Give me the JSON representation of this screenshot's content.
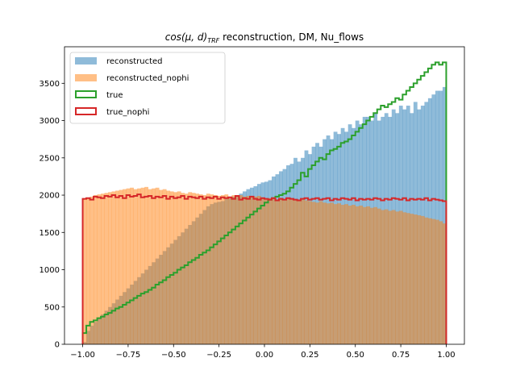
{
  "chart_data": {
    "type": "histogram",
    "title": {
      "math": "cos(μ, d)",
      "subscript": "TRF",
      "text": " reconstruction, DM, Nu_flows"
    },
    "xlabel": "",
    "ylabel": "",
    "xlim": [
      -1.1,
      1.1
    ],
    "ylim": [
      0,
      3990
    ],
    "xticks": [
      -1.0,
      -0.75,
      -0.5,
      -0.25,
      0.0,
      0.25,
      0.5,
      0.75,
      1.0
    ],
    "xtick_labels": [
      "−1.00",
      "−0.75",
      "−0.50",
      "−0.25",
      "0.00",
      "0.25",
      "0.50",
      "0.75",
      "1.00"
    ],
    "yticks": [
      0,
      500,
      1000,
      1500,
      2000,
      2500,
      3000,
      3500
    ],
    "ytick_labels": [
      "0",
      "500",
      "1000",
      "1500",
      "2000",
      "2500",
      "3000",
      "3500"
    ],
    "bin_range": [
      -1.0,
      1.0
    ],
    "bins": 100,
    "grid": false,
    "legend_position": "upper left",
    "series": [
      {
        "name": "reconstructed",
        "style": "filled",
        "color": "#1f77b4",
        "alpha": 0.5,
        "values": [
          30,
          180,
          250,
          300,
          350,
          400,
          450,
          500,
          550,
          600,
          650,
          700,
          750,
          800,
          850,
          900,
          950,
          1000,
          1050,
          1100,
          1150,
          1200,
          1250,
          1300,
          1350,
          1400,
          1450,
          1500,
          1550,
          1600,
          1650,
          1700,
          1750,
          1800,
          1850,
          1880,
          1900,
          1910,
          1920,
          1950,
          1960,
          1980,
          2000,
          2020,
          2050,
          2080,
          2100,
          2120,
          2150,
          2170,
          2180,
          2200,
          2250,
          2280,
          2320,
          2350,
          2400,
          2420,
          2500,
          2450,
          2500,
          2600,
          2550,
          2650,
          2700,
          2650,
          2750,
          2800,
          2750,
          2850,
          2820,
          2900,
          2850,
          2950,
          2900,
          3000,
          2950,
          3050,
          3050,
          3000,
          3100,
          3000,
          3050,
          3100,
          3050,
          3150,
          3100,
          3200,
          3150,
          3200,
          3100,
          3250,
          3150,
          3200,
          3250,
          3300,
          3350,
          3400,
          3400,
          3450
        ]
      },
      {
        "name": "reconstructed_nophi",
        "style": "filled",
        "color": "#ff7f0e",
        "alpha": 0.5,
        "values": [
          1950,
          1960,
          1980,
          2000,
          2010,
          2020,
          2030,
          2040,
          2050,
          2060,
          2070,
          2080,
          2090,
          2100,
          2080,
          2090,
          2100,
          2110,
          2080,
          2090,
          2100,
          2070,
          2080,
          2060,
          2050,
          2040,
          2050,
          2030,
          2020,
          2040,
          2030,
          2020,
          2010,
          2000,
          2020,
          2010,
          2000,
          1990,
          2000,
          2010,
          1980,
          2000,
          1990,
          2000,
          1980,
          1990,
          1970,
          1980,
          1990,
          1960,
          1950,
          1960,
          1950,
          1940,
          1950,
          1930,
          1950,
          1940,
          1930,
          1920,
          1940,
          1930,
          1920,
          1910,
          1900,
          1920,
          1900,
          1890,
          1900,
          1880,
          1890,
          1870,
          1880,
          1860,
          1870,
          1850,
          1860,
          1840,
          1850,
          1830,
          1840,
          1820,
          1800,
          1810,
          1790,
          1800,
          1780,
          1790,
          1770,
          1760,
          1750,
          1740,
          1730,
          1720,
          1700,
          1690,
          1680,
          1670,
          1650,
          1620
        ]
      },
      {
        "name": "true",
        "style": "step",
        "color": "#2ca02c",
        "values": [
          150,
          250,
          300,
          320,
          350,
          370,
          400,
          420,
          450,
          480,
          500,
          530,
          560,
          590,
          620,
          650,
          680,
          700,
          730,
          760,
          800,
          830,
          860,
          900,
          930,
          960,
          1000,
          1030,
          1060,
          1100,
          1130,
          1160,
          1200,
          1230,
          1260,
          1300,
          1340,
          1380,
          1420,
          1460,
          1500,
          1540,
          1580,
          1620,
          1660,
          1700,
          1740,
          1780,
          1820,
          1860,
          1900,
          1940,
          1960,
          1980,
          2000,
          2020,
          2050,
          2100,
          2150,
          2200,
          2300,
          2250,
          2350,
          2400,
          2450,
          2500,
          2480,
          2550,
          2600,
          2620,
          2650,
          2700,
          2720,
          2750,
          2800,
          2850,
          2900,
          2950,
          3000,
          3050,
          3100,
          3150,
          3200,
          3180,
          3220,
          3250,
          3300,
          3280,
          3350,
          3400,
          3450,
          3500,
          3550,
          3600,
          3650,
          3700,
          3750,
          3780,
          3750,
          3780
        ]
      },
      {
        "name": "true_nophi",
        "style": "step",
        "color": "#d62728",
        "values": [
          1950,
          1960,
          1940,
          1980,
          1970,
          1960,
          1990,
          1980,
          2000,
          1970,
          1990,
          1960,
          2000,
          1980,
          1990,
          2010,
          1970,
          1980,
          1990,
          1960,
          1980,
          1970,
          1990,
          1950,
          1980,
          1960,
          1970,
          1990,
          1950,
          1980,
          1970,
          1960,
          1980,
          1950,
          1970,
          1960,
          1980,
          1950,
          1970,
          1960,
          1970,
          1950,
          1990,
          1940,
          1960,
          1950,
          1980,
          1950,
          1940,
          1960,
          1950,
          1940,
          1960,
          1930,
          1950,
          1940,
          1960,
          1950,
          1940,
          1930,
          1950,
          1960,
          1940,
          1950,
          1960,
          1940,
          1950,
          1960,
          1930,
          1950,
          1940,
          1960,
          1950,
          1940,
          1960,
          1930,
          1950,
          1940,
          1950,
          1940,
          1960,
          1950,
          1930,
          1950,
          1940,
          1960,
          1950,
          1940,
          1960,
          1930,
          1950,
          1940,
          1950,
          1940,
          1960,
          1930,
          1950,
          1940,
          1930,
          1920
        ]
      }
    ]
  }
}
